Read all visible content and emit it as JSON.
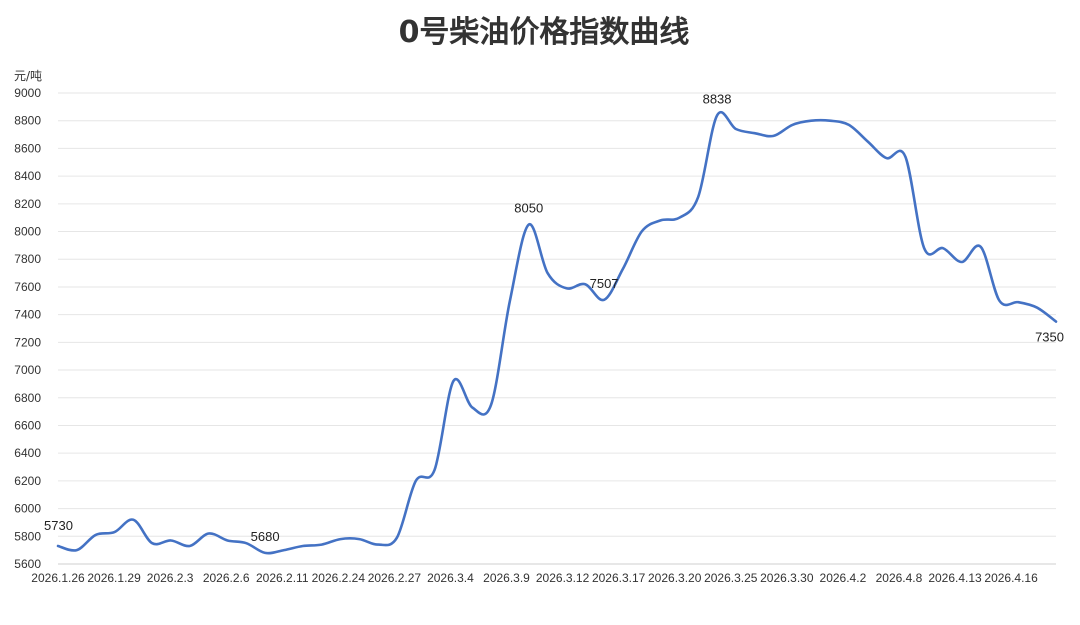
{
  "chart_data": {
    "type": "line",
    "title": "0号柴油价格指数曲线",
    "unit_label": "元/吨",
    "color": "#4472C4",
    "ylim": [
      5600,
      9000
    ],
    "ystep": 200,
    "grid": true,
    "legend": "none",
    "x_tick_labels": [
      "2026.1.26",
      "2026.1.29",
      "2026.2.3",
      "2026.2.6",
      "2026.2.11",
      "2026.2.24",
      "2026.2.27",
      "2026.3.4",
      "2026.3.9",
      "2026.3.12",
      "2026.3.17",
      "2026.3.20",
      "2026.3.25",
      "2026.3.30",
      "2026.4.2",
      "2026.4.8",
      "2026.4.13",
      "2026.4.16"
    ],
    "values": [
      5730,
      5700,
      5810,
      5830,
      5920,
      5750,
      5770,
      5730,
      5820,
      5770,
      5750,
      5680,
      5700,
      5730,
      5740,
      5780,
      5780,
      5740,
      5790,
      6200,
      6280,
      6920,
      6730,
      6750,
      7500,
      8050,
      7700,
      7590,
      7620,
      7507,
      7730,
      8000,
      8080,
      8100,
      8250,
      8838,
      8740,
      8710,
      8690,
      8770,
      8800,
      8800,
      8770,
      8650,
      8530,
      8540,
      7880,
      7880,
      7780,
      7890,
      7500,
      7490,
      7450,
      7350
    ],
    "data_labels": [
      {
        "index": 0,
        "text": "5730"
      },
      {
        "index": 11,
        "text": "5680"
      },
      {
        "index": 25,
        "text": "8050"
      },
      {
        "index": 29,
        "text": "7507"
      },
      {
        "index": 35,
        "text": "8838"
      },
      {
        "index": 53,
        "text": "7350"
      }
    ]
  }
}
